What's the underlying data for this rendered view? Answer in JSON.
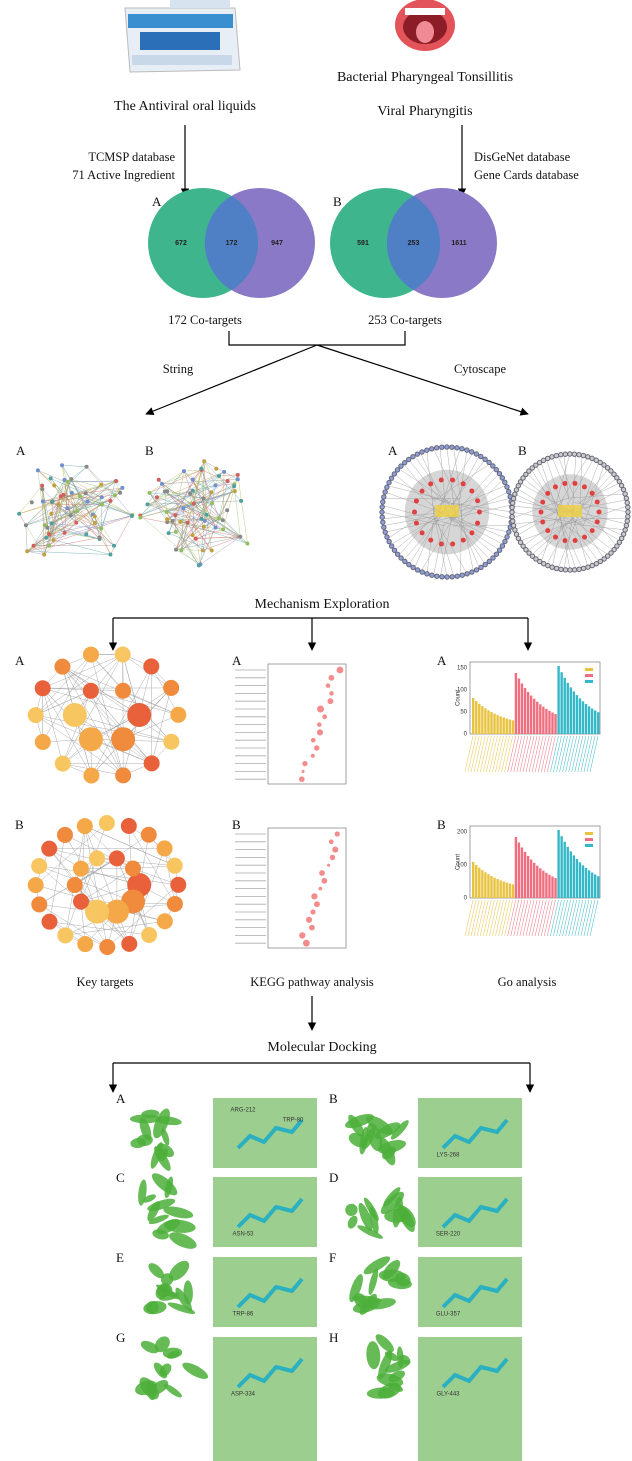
{
  "top": {
    "left_title": "The Antiviral oral liquids",
    "right_titles": [
      "Bacterial Pharyngeal Tonsillitis",
      "Viral Pharyngitis"
    ]
  },
  "sources": {
    "left": [
      "TCMSP database",
      "71 Active Ingredient"
    ],
    "right": [
      "DisGeNet database",
      "Gene Cards database"
    ]
  },
  "venn": [
    {
      "letter": "A",
      "left": 672,
      "overlap": 172,
      "right": 947,
      "caption": "172 Co-targets"
    },
    {
      "letter": "B",
      "left": 591,
      "overlap": 253,
      "right": 1611,
      "caption": "253 Co-targets"
    }
  ],
  "tools": [
    "String",
    "Cytoscape"
  ],
  "networks": {
    "string_letters": [
      "A",
      "B"
    ],
    "cytoscape_letters": [
      "A",
      "B"
    ]
  },
  "mechanism": "Mechanism Exploration",
  "analysis": {
    "row_letters": [
      "A",
      "B"
    ],
    "captions": [
      "Key targets",
      "KEGG pathway analysis",
      "Go analysis"
    ],
    "go_axis": "Count",
    "go_ticks_a": [
      "150",
      "100",
      "50",
      "0"
    ],
    "go_ticks_b": [
      "200",
      "100",
      "0"
    ]
  },
  "docking": {
    "title": "Molecular Docking",
    "panels": [
      {
        "letter": "A",
        "residues": [
          "ARG-212",
          "TRP-80"
        ]
      },
      {
        "letter": "B",
        "residues": [
          "LYS-268"
        ]
      },
      {
        "letter": "C",
        "residues": [
          "ASN-53"
        ]
      },
      {
        "letter": "D",
        "residues": [
          "SER-220"
        ]
      },
      {
        "letter": "E",
        "residues": [
          "TRP-86"
        ]
      },
      {
        "letter": "F",
        "residues": [
          "GLU-357"
        ]
      },
      {
        "letter": "G",
        "residues": [
          "ASP-334"
        ]
      },
      {
        "letter": "H",
        "residues": [
          "GLY-443"
        ]
      }
    ]
  }
}
